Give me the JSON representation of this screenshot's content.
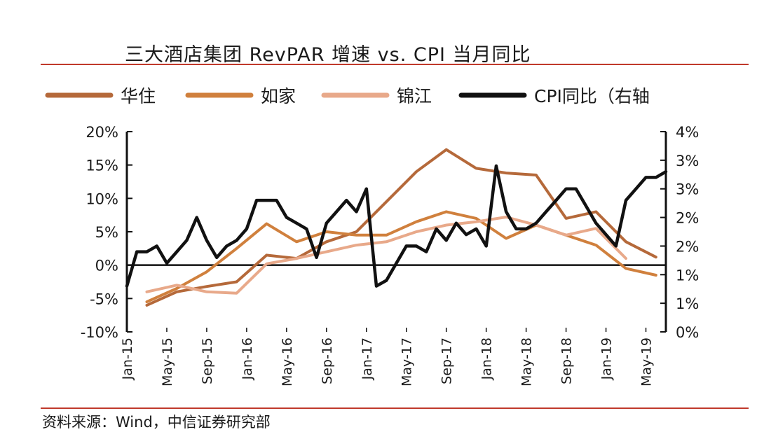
{
  "title": "三大酒店集团 RevPAR 增速 vs. CPI 当月同比",
  "source": "资料来源：Wind，中信证券研究部",
  "chart_data": {
    "type": "line",
    "title": "三大酒店集团 RevPAR 增速 vs. CPI 当月同比",
    "x_tick_labels": [
      "Jan-15",
      "May-15",
      "Sep-15",
      "Jan-16",
      "May-16",
      "Sep-16",
      "Jan-17",
      "May-17",
      "Sep-17",
      "Jan-18",
      "May-18",
      "Sep-18",
      "Jan-19",
      "May-19"
    ],
    "y_left": {
      "ticks": [
        "20%",
        "15%",
        "10%",
        "5%",
        "0%",
        "-5%",
        "-10%"
      ],
      "range": [
        -10,
        20
      ]
    },
    "y_right": {
      "ticks": [
        "4%",
        "3%",
        "3%",
        "2%",
        "2%",
        "1%",
        "1%",
        "0%"
      ],
      "range": [
        0,
        3.5
      ],
      "label": "右轴"
    },
    "legend_position": "top",
    "grid": false,
    "series": [
      {
        "name": "华住",
        "axis": "left",
        "color": "#b5693a",
        "points": [
          [
            "2015-03",
            -6.0
          ],
          [
            "2015-06",
            -4.0
          ],
          [
            "2015-09",
            -3.2
          ],
          [
            "2015-12",
            -2.5
          ],
          [
            "2016-03",
            1.5
          ],
          [
            "2016-06",
            1.0
          ],
          [
            "2016-09",
            3.5
          ],
          [
            "2016-12",
            5.0
          ],
          [
            "2017-03",
            9.5
          ],
          [
            "2017-06",
            14.0
          ],
          [
            "2017-09",
            17.3
          ],
          [
            "2017-12",
            14.5
          ],
          [
            "2018-03",
            13.8
          ],
          [
            "2018-06",
            13.5
          ],
          [
            "2018-09",
            7.0
          ],
          [
            "2018-12",
            8.0
          ],
          [
            "2019-03",
            3.5
          ],
          [
            "2019-06",
            1.2
          ]
        ]
      },
      {
        "name": "如家",
        "axis": "left",
        "color": "#d0803d",
        "points": [
          [
            "2015-03",
            -5.5
          ],
          [
            "2015-06",
            -3.5
          ],
          [
            "2015-09",
            -1.0
          ],
          [
            "2015-12",
            2.5
          ],
          [
            "2016-03",
            6.2
          ],
          [
            "2016-06",
            3.5
          ],
          [
            "2016-09",
            5.0
          ],
          [
            "2016-12",
            4.5
          ],
          [
            "2017-03",
            4.5
          ],
          [
            "2017-06",
            6.5
          ],
          [
            "2017-09",
            8.0
          ],
          [
            "2017-12",
            7.0
          ],
          [
            "2018-03",
            4.0
          ],
          [
            "2018-06",
            6.0
          ],
          [
            "2018-09",
            4.5
          ],
          [
            "2018-12",
            3.0
          ],
          [
            "2019-03",
            -0.5
          ],
          [
            "2019-06",
            -1.5
          ]
        ]
      },
      {
        "name": "锦江",
        "axis": "left",
        "color": "#e8a98a",
        "points": [
          [
            "2015-03",
            -4.0
          ],
          [
            "2015-06",
            -3.0
          ],
          [
            "2015-09",
            -4.0
          ],
          [
            "2015-12",
            -4.2
          ],
          [
            "2016-03",
            0.2
          ],
          [
            "2016-06",
            1.0
          ],
          [
            "2016-09",
            2.0
          ],
          [
            "2016-12",
            3.0
          ],
          [
            "2017-03",
            3.5
          ],
          [
            "2017-06",
            5.0
          ],
          [
            "2017-09",
            6.0
          ],
          [
            "2017-12",
            6.5
          ],
          [
            "2018-03",
            7.2
          ],
          [
            "2018-06",
            6.0
          ],
          [
            "2018-09",
            4.5
          ],
          [
            "2018-12",
            5.5
          ],
          [
            "2019-03",
            1.0
          ]
        ]
      },
      {
        "name": "CPI同比（右轴",
        "axis": "right",
        "color": "#111111",
        "points": [
          [
            "2015-01",
            0.8
          ],
          [
            "2015-02",
            1.4
          ],
          [
            "2015-03",
            1.4
          ],
          [
            "2015-04",
            1.5
          ],
          [
            "2015-05",
            1.2
          ],
          [
            "2015-06",
            1.4
          ],
          [
            "2015-07",
            1.6
          ],
          [
            "2015-08",
            2.0
          ],
          [
            "2015-09",
            1.6
          ],
          [
            "2015-10",
            1.3
          ],
          [
            "2015-11",
            1.5
          ],
          [
            "2015-12",
            1.6
          ],
          [
            "2016-01",
            1.8
          ],
          [
            "2016-02",
            2.3
          ],
          [
            "2016-03",
            2.3
          ],
          [
            "2016-04",
            2.3
          ],
          [
            "2016-05",
            2.0
          ],
          [
            "2016-06",
            1.9
          ],
          [
            "2016-07",
            1.8
          ],
          [
            "2016-08",
            1.3
          ],
          [
            "2016-09",
            1.9
          ],
          [
            "2016-10",
            2.1
          ],
          [
            "2016-11",
            2.3
          ],
          [
            "2016-12",
            2.1
          ],
          [
            "2017-01",
            2.5
          ],
          [
            "2017-02",
            0.8
          ],
          [
            "2017-03",
            0.9
          ],
          [
            "2017-04",
            1.2
          ],
          [
            "2017-05",
            1.5
          ],
          [
            "2017-06",
            1.5
          ],
          [
            "2017-07",
            1.4
          ],
          [
            "2017-08",
            1.8
          ],
          [
            "2017-09",
            1.6
          ],
          [
            "2017-10",
            1.9
          ],
          [
            "2017-11",
            1.7
          ],
          [
            "2017-12",
            1.8
          ],
          [
            "2018-01",
            1.5
          ],
          [
            "2018-02",
            2.9
          ],
          [
            "2018-03",
            2.1
          ],
          [
            "2018-04",
            1.8
          ],
          [
            "2018-05",
            1.8
          ],
          [
            "2018-06",
            1.9
          ],
          [
            "2018-07",
            2.1
          ],
          [
            "2018-08",
            2.3
          ],
          [
            "2018-09",
            2.5
          ],
          [
            "2018-10",
            2.5
          ],
          [
            "2018-11",
            2.2
          ],
          [
            "2018-12",
            1.9
          ],
          [
            "2019-01",
            1.7
          ],
          [
            "2019-02",
            1.5
          ],
          [
            "2019-03",
            2.3
          ],
          [
            "2019-04",
            2.5
          ],
          [
            "2019-05",
            2.7
          ],
          [
            "2019-06",
            2.7
          ],
          [
            "2019-07",
            2.8
          ]
        ]
      }
    ]
  }
}
